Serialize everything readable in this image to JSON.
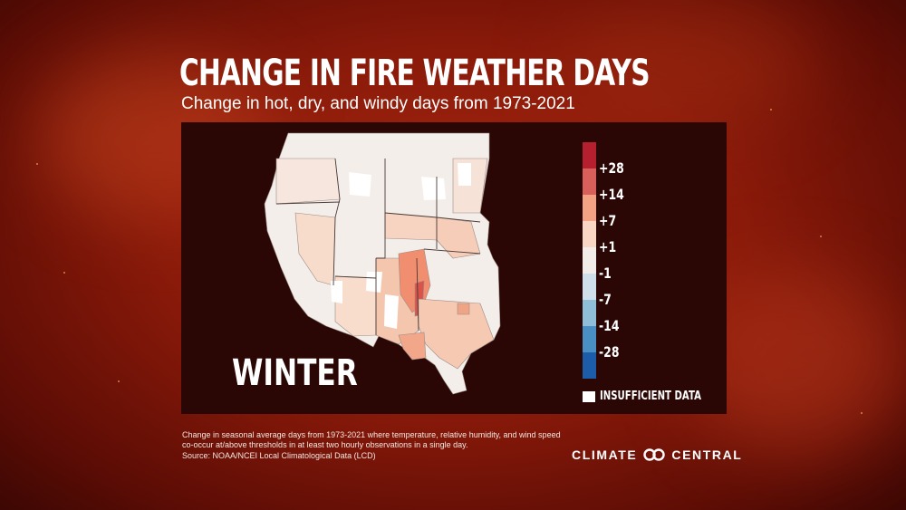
{
  "title": "CHANGE IN FIRE WEATHER DAYS",
  "subtitle": "Change in hot, dry, and windy days from 1973-2021",
  "season": "WINTER",
  "legend": {
    "bins": [
      {
        "label": "+28",
        "color": "#b51f2e"
      },
      {
        "label": "+14",
        "color": "#d9605a"
      },
      {
        "label": "+7",
        "color": "#f3a383"
      },
      {
        "label": "+1",
        "color": "#f9d6c4"
      },
      {
        "label": "-1",
        "color": "#f2ede9"
      },
      {
        "label": "-7",
        "color": "#cfe0ea"
      },
      {
        "label": "-14",
        "color": "#8fbfd8"
      },
      {
        "label": "-28",
        "color": "#4a8fc4"
      },
      {
        "label": "",
        "color": "#1c5ca8"
      }
    ],
    "insufficient_label": "INSUFFICIENT DATA",
    "insufficient_color": "#ffffff"
  },
  "footnote": "Change in seasonal average days from 1973-2021 where temperature, relative humidity, and wind speed co-occur at/above thresholds in at least two hourly observations in a single day.",
  "source": "Source: NOAA/NCEI Local Climatological Data (LCD)",
  "brand": {
    "left": "CLIMATE",
    "right": "CENTRAL"
  },
  "icons": {
    "brand_logo": "climate-central-logo-icon"
  }
}
